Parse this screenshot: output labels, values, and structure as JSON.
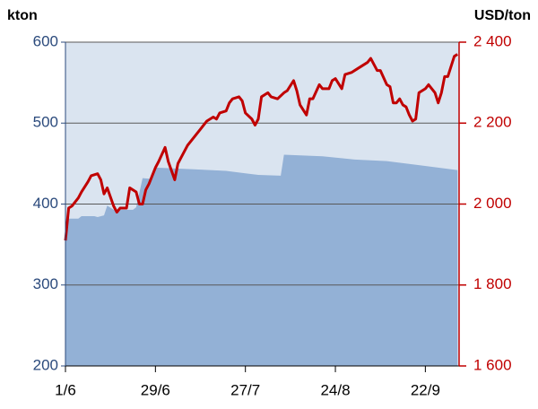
{
  "chart_data": {
    "type": "area-line",
    "y_label": "kton",
    "y2_label": "USD/ton",
    "xlim": [
      0,
      122.5
    ],
    "xticks": [
      {
        "value": 0,
        "label": "1/6"
      },
      {
        "value": 28,
        "label": "29/6"
      },
      {
        "value": 56,
        "label": "27/7"
      },
      {
        "value": 84,
        "label": "24/8"
      },
      {
        "value": 112,
        "label": "22/9"
      }
    ],
    "ylim": [
      200,
      600
    ],
    "yticks": [
      200,
      300,
      400,
      500,
      600
    ],
    "y2lim": [
      1600,
      2400
    ],
    "y2ticks": [
      {
        "value": 1600,
        "label": "1 600"
      },
      {
        "value": 1800,
        "label": "1 800"
      },
      {
        "value": 2000,
        "label": "2 000"
      },
      {
        "value": 2200,
        "label": "2 200"
      },
      {
        "value": 2400,
        "label": "2 400"
      }
    ],
    "grid": true,
    "series": [
      {
        "kind": "area",
        "axis": "y",
        "color": "#93b1d6",
        "x": [
          0,
          1,
          4,
          5,
          9,
          10,
          12,
          13,
          15,
          21,
          22,
          24,
          27,
          28,
          40,
          50,
          56,
          60,
          67,
          68,
          80,
          90,
          100,
          110,
          122
        ],
        "values": [
          352,
          382,
          382,
          385,
          385,
          384,
          386,
          398,
          393,
          393,
          396,
          432,
          431,
          445,
          443,
          441,
          438,
          436,
          435,
          461,
          459,
          455,
          453,
          448,
          442
        ]
      },
      {
        "kind": "line",
        "axis": "y2",
        "color": "#c00000",
        "x": [
          0,
          1,
          2,
          4,
          5,
          7,
          8,
          10,
          11,
          12,
          13,
          15,
          16,
          17,
          19,
          20,
          22,
          23,
          24,
          25,
          26,
          28,
          29,
          31,
          32,
          34,
          35,
          36,
          38,
          41,
          42,
          44,
          46,
          47,
          48,
          50,
          51,
          52,
          54,
          55,
          56,
          58,
          59,
          60,
          61,
          63,
          64,
          66,
          68,
          69,
          71,
          72,
          73,
          75,
          76,
          77,
          79,
          80,
          82,
          83,
          84,
          86,
          87,
          89,
          91,
          92,
          94,
          95,
          96,
          97,
          98,
          100,
          101,
          102,
          103,
          104,
          105,
          106,
          107,
          108,
          109,
          110,
          112,
          113,
          115,
          116,
          117,
          118,
          119,
          120,
          121,
          122
        ],
        "values": [
          1910,
          1990,
          1995,
          2015,
          2030,
          2055,
          2070,
          2075,
          2060,
          2025,
          2040,
          1995,
          1980,
          1990,
          1990,
          2040,
          2030,
          2000,
          2000,
          2035,
          2050,
          2090,
          2105,
          2140,
          2105,
          2060,
          2100,
          2115,
          2145,
          2175,
          2185,
          2205,
          2215,
          2210,
          2225,
          2230,
          2250,
          2260,
          2265,
          2255,
          2225,
          2210,
          2195,
          2210,
          2265,
          2275,
          2265,
          2260,
          2275,
          2280,
          2305,
          2280,
          2245,
          2220,
          2260,
          2260,
          2295,
          2285,
          2285,
          2305,
          2310,
          2285,
          2320,
          2325,
          2335,
          2340,
          2350,
          2360,
          2345,
          2330,
          2330,
          2295,
          2290,
          2250,
          2250,
          2260,
          2245,
          2240,
          2220,
          2205,
          2210,
          2275,
          2285,
          2295,
          2275,
          2250,
          2275,
          2315,
          2315,
          2340,
          2365,
          2370
        ]
      }
    ]
  }
}
